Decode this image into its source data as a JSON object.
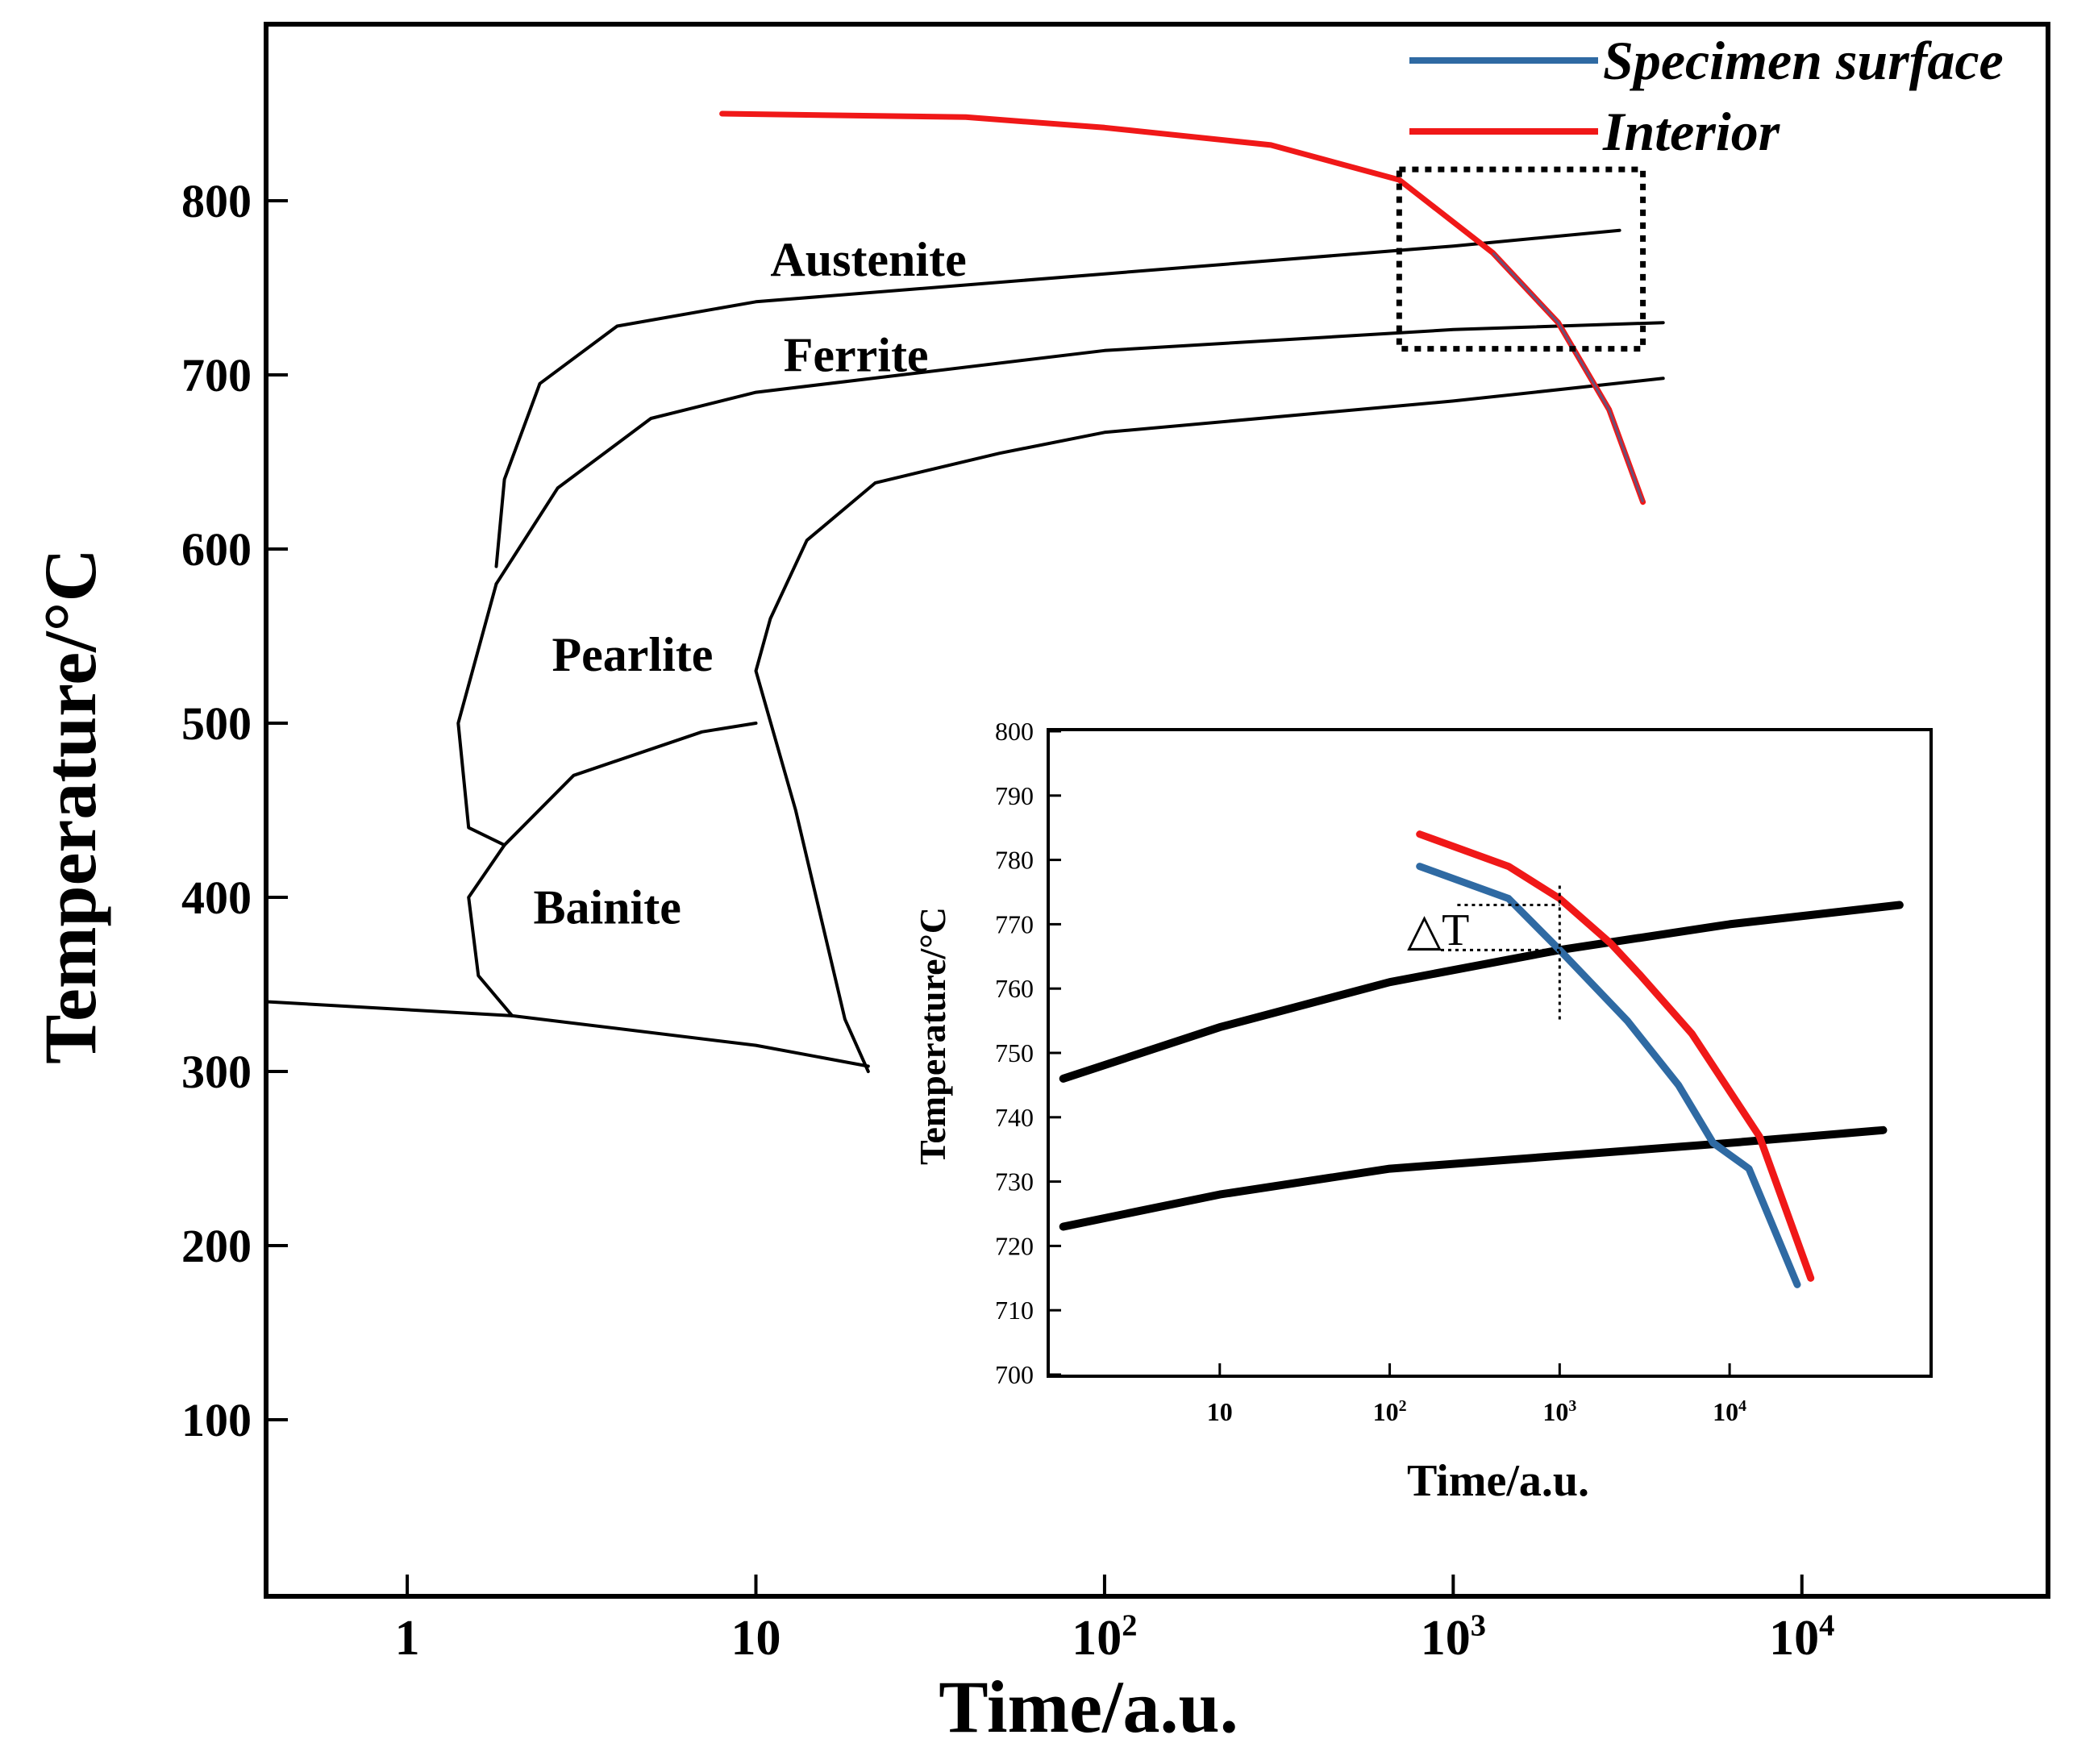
{
  "chart_data": [
    {
      "id": "main",
      "type": "line",
      "subtype": "CCT diagram",
      "title": "",
      "xlabel": "Time/a.u.",
      "ylabel": "Temperature/°C",
      "xscale": "log",
      "xlim": [
        0.4,
        50000
      ],
      "ylim": [
        0,
        900
      ],
      "xticks": [
        {
          "value": 1,
          "base": "1",
          "exp": ""
        },
        {
          "value": 10,
          "base": "10",
          "exp": ""
        },
        {
          "value": 100,
          "base": "10",
          "exp": "2"
        },
        {
          "value": 1000,
          "base": "10",
          "exp": "3"
        },
        {
          "value": 10000,
          "base": "10",
          "exp": "4"
        }
      ],
      "yticks": [
        100,
        200,
        300,
        400,
        500,
        600,
        700,
        800
      ],
      "legend": {
        "position": "top-right",
        "entries": [
          {
            "label": "Specimen surface",
            "color": "#2f6aa3"
          },
          {
            "label": "Interior",
            "color": "#f01818"
          }
        ]
      },
      "region_labels": [
        {
          "text": "Austenite",
          "x": 11,
          "y": 757
        },
        {
          "text": "Ferrite",
          "x": 12,
          "y": 702
        },
        {
          "text": "Pearlite",
          "x": 2.6,
          "y": 530
        },
        {
          "text": "Bainite",
          "x": 2.3,
          "y": 385
        }
      ],
      "boundaries": [
        {
          "name": "ferrite start (upper)",
          "points": [
            [
              1.8,
              590
            ],
            [
              1.9,
              640
            ],
            [
              2.4,
              695
            ],
            [
              4,
              728
            ],
            [
              10,
              742
            ],
            [
              100,
              758
            ],
            [
              1000,
              774
            ],
            [
              3000,
              783
            ]
          ]
        },
        {
          "name": "ferrite finish / pearlite start",
          "points": [
            [
              1.8,
              580
            ],
            [
              2.7,
              635
            ],
            [
              5,
              675
            ],
            [
              10,
              690
            ],
            [
              100,
              714
            ],
            [
              1000,
              726
            ],
            [
              4000,
              730
            ]
          ]
        },
        {
          "name": "pearlite finish",
          "points": [
            [
              21,
              300
            ],
            [
              18,
              330
            ],
            [
              13,
              450
            ],
            [
              10,
              530
            ],
            [
              11,
              560
            ],
            [
              14,
              605
            ],
            [
              22,
              638
            ],
            [
              50,
              655
            ],
            [
              100,
              667
            ],
            [
              1000,
              685
            ],
            [
              4000,
              698
            ]
          ]
        },
        {
          "name": "ferrite/pearlite lower bulge",
          "points": [
            [
              1.8,
              580
            ],
            [
              1.4,
              500
            ],
            [
              1.5,
              440
            ],
            [
              1.9,
              430
            ]
          ]
        },
        {
          "name": "bainite start",
          "points": [
            [
              1.9,
              430
            ],
            [
              3,
              470
            ],
            [
              7,
              495
            ],
            [
              10,
              500
            ]
          ]
        },
        {
          "name": "bainite boundary",
          "points": [
            [
              1.9,
              430
            ],
            [
              1.5,
              400
            ],
            [
              1.6,
              355
            ],
            [
              2,
              332
            ]
          ]
        },
        {
          "name": "martensite start",
          "points": [
            [
              0.4,
              340
            ],
            [
              2,
              332
            ],
            [
              10,
              315
            ],
            [
              21,
              303
            ]
          ]
        }
      ],
      "series": [
        {
          "name": "Interior",
          "color": "#f01818",
          "points": [
            [
              8,
              850
            ],
            [
              40,
              848
            ],
            [
              100,
              842
            ],
            [
              300,
              832
            ],
            [
              700,
              812
            ],
            [
              1300,
              770
            ],
            [
              2000,
              730
            ],
            [
              2800,
              680
            ],
            [
              3500,
              627
            ]
          ]
        }
      ],
      "annotation": {
        "type": "dashed box",
        "x_range": [
          700,
          3500
        ],
        "y_range": [
          715,
          818
        ]
      }
    },
    {
      "id": "inset",
      "type": "line",
      "title": "",
      "xlabel": "Time/a.u.",
      "ylabel": "Temperature/°C",
      "xscale": "log",
      "xlim": [
        1,
        150000
      ],
      "ylim": [
        700,
        800
      ],
      "xticks": [
        {
          "value": 10,
          "base": "10",
          "exp": ""
        },
        {
          "value": 100,
          "base": "10",
          "exp": "2"
        },
        {
          "value": 1000,
          "base": "10",
          "exp": "3"
        },
        {
          "value": 10000,
          "base": "10",
          "exp": "4"
        }
      ],
      "yticks": [
        700,
        710,
        720,
        730,
        740,
        750,
        760,
        770,
        780,
        790,
        800
      ],
      "annotation_label": "△T",
      "series": [
        {
          "name": "upper boundary",
          "color": "#000000",
          "points": [
            [
              1.2,
              746
            ],
            [
              10,
              754
            ],
            [
              100,
              761
            ],
            [
              1000,
              766
            ],
            [
              10000,
              770
            ],
            [
              100000,
              773
            ]
          ]
        },
        {
          "name": "lower boundary",
          "color": "#000000",
          "points": [
            [
              1.2,
              723
            ],
            [
              10,
              728
            ],
            [
              100,
              732
            ],
            [
              1000,
              734
            ],
            [
              10000,
              736
            ],
            [
              80000,
              738
            ]
          ]
        },
        {
          "name": "Specimen surface",
          "color": "#2f6aa3",
          "points": [
            [
              150,
              779
            ],
            [
              500,
              774
            ],
            [
              1000,
              766
            ],
            [
              2500,
              755
            ],
            [
              5000,
              745
            ],
            [
              8000,
              736
            ],
            [
              13000,
              732
            ],
            [
              25000,
              714
            ]
          ]
        },
        {
          "name": "Interior",
          "color": "#f01818",
          "points": [
            [
              150,
              784
            ],
            [
              500,
              779
            ],
            [
              1000,
              774
            ],
            [
              2000,
              767
            ],
            [
              3000,
              762
            ],
            [
              6000,
              753
            ],
            [
              15000,
              737
            ],
            [
              30000,
              715
            ]
          ]
        }
      ],
      "delta_t_guides": {
        "x": 1000,
        "y_low": 766,
        "y_high": 773
      }
    }
  ]
}
